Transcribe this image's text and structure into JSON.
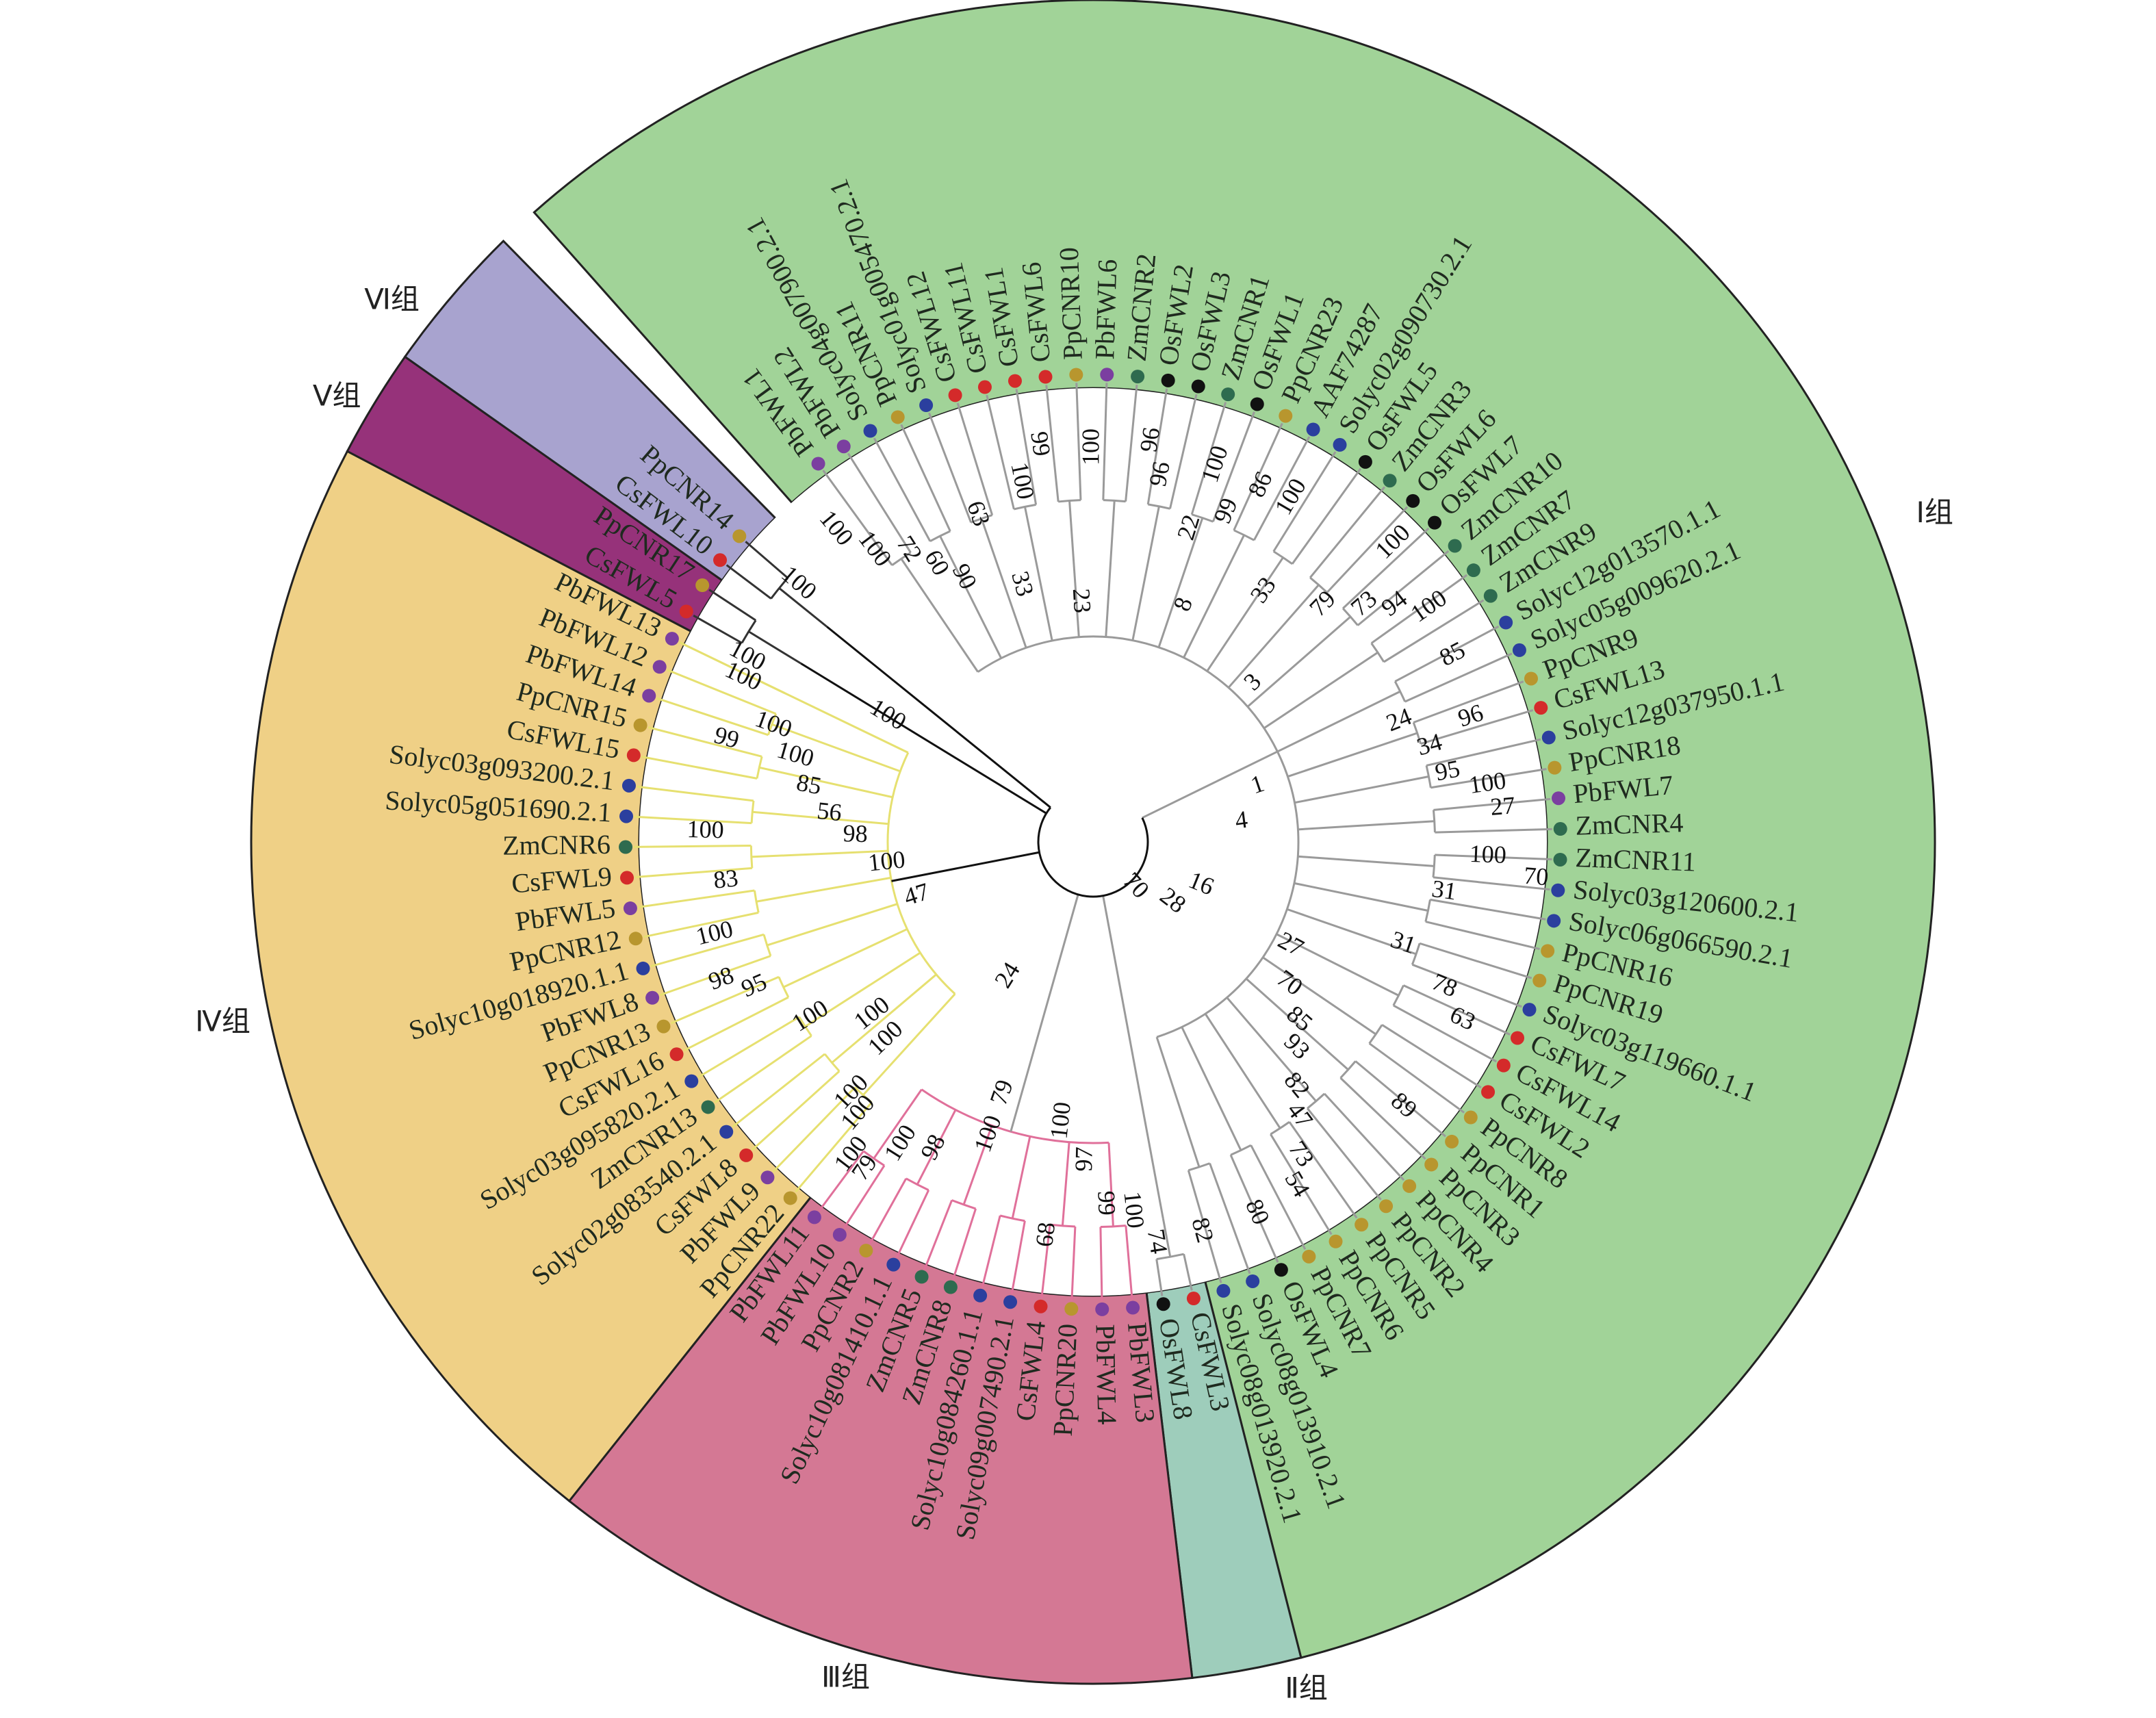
{
  "groups": [
    {
      "label": "Ⅰ组",
      "color": "#a1d398",
      "branch_color": "#9a9a9a",
      "leaves": [
        {
          "name": "PbFWL1",
          "color": "#7b3fa0"
        },
        {
          "name": "PbFWL2",
          "color": "#7b3fa0"
        },
        {
          "name": "Solyc04g007900.2.1",
          "color": "#2b3f9e"
        },
        {
          "name": "PpCNR11",
          "color": "#b8962e"
        },
        {
          "name": "Solyc01g005470.2.1",
          "color": "#2b3f9e"
        },
        {
          "name": "CsFWL12",
          "color": "#d42a2a"
        },
        {
          "name": "CsFWL11",
          "color": "#d42a2a"
        },
        {
          "name": "CsFWL1",
          "color": "#d42a2a"
        },
        {
          "name": "CsFWL6",
          "color": "#d42a2a"
        },
        {
          "name": "PpCNR10",
          "color": "#b8962e"
        },
        {
          "name": "PbFWL6",
          "color": "#7b3fa0"
        },
        {
          "name": "ZmCNR2",
          "color": "#2e6b4f"
        },
        {
          "name": "OsFWL2",
          "color": "#111111"
        },
        {
          "name": "OsFWL3",
          "color": "#111111"
        },
        {
          "name": "ZmCNR1",
          "color": "#2e6b4f"
        },
        {
          "name": "OsFWL1",
          "color": "#111111"
        },
        {
          "name": "PpCNR23",
          "color": "#b8962e"
        },
        {
          "name": "AAF74287",
          "color": "#2b3f9e"
        },
        {
          "name": "Solyc02g090730.2.1",
          "color": "#2b3f9e"
        },
        {
          "name": "OsFWL5",
          "color": "#111111"
        },
        {
          "name": "ZmCNR3",
          "color": "#2e6b4f"
        },
        {
          "name": "OsFWL6",
          "color": "#111111"
        },
        {
          "name": "OsFWL7",
          "color": "#111111"
        },
        {
          "name": "ZmCNR10",
          "color": "#2e6b4f"
        },
        {
          "name": "ZmCNR7",
          "color": "#2e6b4f"
        },
        {
          "name": "ZmCNR9",
          "color": "#2e6b4f"
        },
        {
          "name": "Solyc12g013570.1.1",
          "color": "#2b3f9e"
        },
        {
          "name": "Solyc05g009620.2.1",
          "color": "#2b3f9e"
        },
        {
          "name": "PpCNR9",
          "color": "#b8962e"
        },
        {
          "name": "CsFWL13",
          "color": "#d42a2a"
        },
        {
          "name": "Solyc12g037950.1.1",
          "color": "#2b3f9e"
        },
        {
          "name": "PpCNR18",
          "color": "#b8962e"
        },
        {
          "name": "PbFWL7",
          "color": "#7b3fa0"
        },
        {
          "name": "ZmCNR4",
          "color": "#2e6b4f"
        },
        {
          "name": "ZmCNR11",
          "color": "#2e6b4f"
        },
        {
          "name": "Solyc03g120600.2.1",
          "color": "#2b3f9e"
        },
        {
          "name": "Solyc06g066590.2.1",
          "color": "#2b3f9e"
        },
        {
          "name": "PpCNR16",
          "color": "#b8962e"
        },
        {
          "name": "PpCNR19",
          "color": "#b8962e"
        },
        {
          "name": "Solyc03g119660.1.1",
          "color": "#2b3f9e"
        },
        {
          "name": "CsFWL7",
          "color": "#d42a2a"
        },
        {
          "name": "CsFWL14",
          "color": "#d42a2a"
        },
        {
          "name": "CsFWL2",
          "color": "#d42a2a"
        },
        {
          "name": "PpCNR8",
          "color": "#b8962e"
        },
        {
          "name": "PpCNR1",
          "color": "#b8962e"
        },
        {
          "name": "PpCNR3",
          "color": "#b8962e"
        },
        {
          "name": "PpCNR4",
          "color": "#b8962e"
        },
        {
          "name": "PpCNR2",
          "color": "#b8962e"
        },
        {
          "name": "PpCNR5",
          "color": "#b8962e"
        },
        {
          "name": "PpCNR6",
          "color": "#b8962e"
        },
        {
          "name": "PpCNR7",
          "color": "#b8962e"
        },
        {
          "name": "OsFWL4",
          "color": "#111111"
        },
        {
          "name": "Solyc08g013910.2.1",
          "color": "#2b3f9e"
        },
        {
          "name": "Solyc08g013920.2.1",
          "color": "#2b3f9e"
        }
      ]
    },
    {
      "label": "Ⅱ组",
      "color": "#9ecdbb",
      "branch_color": "#9a9a9a",
      "leaves": [
        {
          "name": "CsFWL3",
          "color": "#d42a2a"
        },
        {
          "name": "OsFWL8",
          "color": "#111111"
        }
      ]
    },
    {
      "label": "Ⅲ组",
      "color": "#d47894",
      "branch_color": "#e0709a",
      "leaves": [
        {
          "name": "PbFWL3",
          "color": "#7b3fa0"
        },
        {
          "name": "PbFWL4",
          "color": "#7b3fa0"
        },
        {
          "name": "PpCNR20",
          "color": "#b8962e"
        },
        {
          "name": "CsFWL4",
          "color": "#d42a2a"
        },
        {
          "name": "Solyc09g007490.2.1",
          "color": "#2b3f9e"
        },
        {
          "name": "Solyc10g084260.1.1",
          "color": "#2b3f9e"
        },
        {
          "name": "ZmCNR8",
          "color": "#2e6b4f"
        },
        {
          "name": "ZmCNR5",
          "color": "#2e6b4f"
        },
        {
          "name": "Solyc10g081410.1.1",
          "color": "#2b3f9e"
        },
        {
          "name": "PpCNR2",
          "color": "#b8962e"
        },
        {
          "name": "PbFWL10",
          "color": "#7b3fa0"
        },
        {
          "name": "PbFWL11",
          "color": "#7b3fa0"
        }
      ]
    },
    {
      "label": "Ⅳ组",
      "color": "#efd086",
      "branch_color": "#e6e070",
      "leaves": [
        {
          "name": "PpCNR22",
          "color": "#b8962e"
        },
        {
          "name": "PbFWL9",
          "color": "#7b3fa0"
        },
        {
          "name": "CsFWL8",
          "color": "#d42a2a"
        },
        {
          "name": "Solyc02g083540.2.1",
          "color": "#2b3f9e"
        },
        {
          "name": "ZmCNR13",
          "color": "#2e6b4f"
        },
        {
          "name": "Solyc03g095820.2.1",
          "color": "#2b3f9e"
        },
        {
          "name": "CsFWL16",
          "color": "#d42a2a"
        },
        {
          "name": "PpCNR13",
          "color": "#b8962e"
        },
        {
          "name": "PbFWL8",
          "color": "#7b3fa0"
        },
        {
          "name": "Solyc10g018920.1.1",
          "color": "#2b3f9e"
        },
        {
          "name": "PpCNR12",
          "color": "#b8962e"
        },
        {
          "name": "PbFWL5",
          "color": "#7b3fa0"
        },
        {
          "name": "CsFWL9",
          "color": "#d42a2a"
        },
        {
          "name": "ZmCNR6",
          "color": "#2e6b4f"
        },
        {
          "name": "Solyc05g051690.2.1",
          "color": "#2b3f9e"
        },
        {
          "name": "Solyc03g093200.2.1",
          "color": "#2b3f9e"
        },
        {
          "name": "CsFWL15",
          "color": "#d42a2a"
        },
        {
          "name": "PpCNR15",
          "color": "#b8962e"
        },
        {
          "name": "PbFWL14",
          "color": "#7b3fa0"
        },
        {
          "name": "PbFWL12",
          "color": "#7b3fa0"
        },
        {
          "name": "PbFWL13",
          "color": "#7b3fa0"
        }
      ]
    },
    {
      "label": "Ⅴ组",
      "color": "#96327a",
      "branch_color": "#333333",
      "leaves": [
        {
          "name": "CsFWL5",
          "color": "#d42a2a"
        },
        {
          "name": "PpCNR17",
          "color": "#b8962e"
        }
      ]
    },
    {
      "label": "Ⅵ组",
      "color": "#a8a3cf",
      "branch_color": "#333333",
      "leaves": [
        {
          "name": "CsFWL10",
          "color": "#d42a2a"
        },
        {
          "name": "PpCNR14",
          "color": "#b8962e"
        }
      ]
    }
  ],
  "branch_supports": [
    100,
    99,
    100,
    96,
    96,
    100,
    86,
    100,
    99,
    22,
    63,
    60,
    72,
    100,
    100,
    90,
    33,
    23,
    8,
    33,
    79,
    73,
    94,
    100,
    100,
    3,
    85,
    96,
    24,
    34,
    95,
    100,
    27,
    1,
    4,
    100,
    70,
    31,
    31,
    16,
    28,
    70,
    27,
    78,
    63,
    70,
    85,
    93,
    82,
    47,
    73,
    54,
    89,
    82,
    80,
    79,
    100,
    100,
    97,
    99,
    100,
    74,
    68,
    98,
    100,
    79,
    100,
    100,
    100,
    100,
    100,
    99,
    100,
    85,
    56,
    98,
    100,
    47,
    100,
    83,
    100,
    98,
    95,
    100,
    100,
    100,
    100,
    100,
    100,
    24
  ]
}
